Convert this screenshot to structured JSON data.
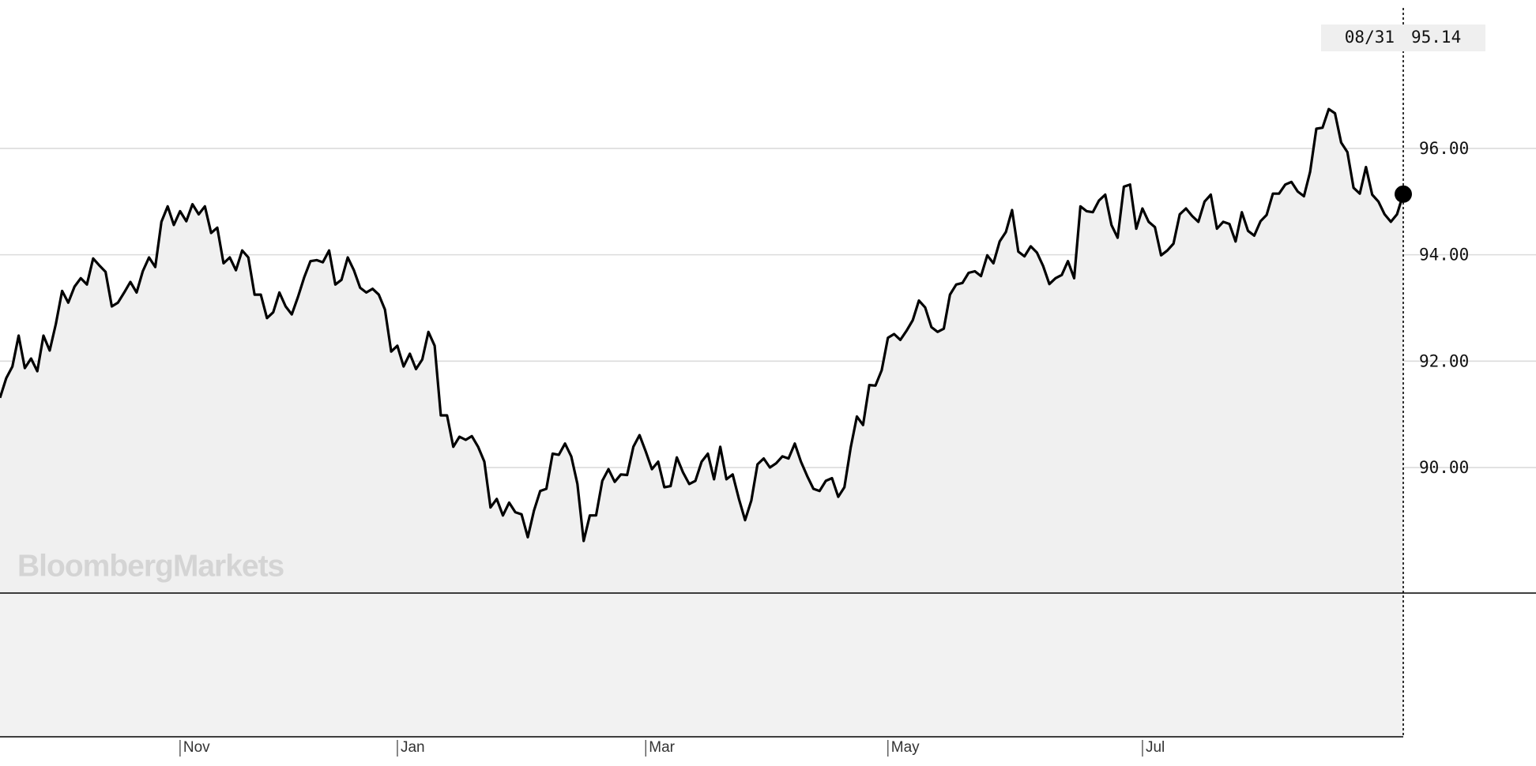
{
  "chart_data": {
    "type": "line",
    "watermark": "BloombergMarkets",
    "tooltip_date": "08/31",
    "values": [
      91.31,
      91.68,
      91.9,
      92.48,
      91.87,
      92.05,
      91.81,
      92.48,
      92.2,
      92.7,
      93.32,
      93.1,
      93.4,
      93.56,
      93.44,
      93.93,
      93.8,
      93.68,
      93.03,
      93.1,
      93.29,
      93.49,
      93.29,
      93.69,
      93.95,
      93.77,
      94.62,
      94.91,
      94.56,
      94.82,
      94.63,
      94.95,
      94.76,
      94.91,
      94.41,
      94.51,
      93.84,
      93.95,
      93.71,
      94.08,
      93.95,
      93.25,
      93.25,
      92.81,
      92.92,
      93.29,
      93.03,
      92.88,
      93.21,
      93.58,
      93.88,
      93.9,
      93.86,
      94.08,
      93.44,
      93.53,
      93.95,
      93.71,
      93.38,
      93.29,
      93.36,
      93.25,
      92.97,
      92.18,
      92.29,
      91.9,
      92.14,
      91.85,
      92.03,
      92.55,
      92.29,
      90.98,
      90.98,
      90.39,
      90.58,
      90.52,
      90.59,
      90.39,
      90.11,
      89.25,
      89.41,
      89.1,
      89.34,
      89.16,
      89.12,
      88.69,
      89.19,
      89.56,
      89.6,
      90.26,
      90.24,
      90.45,
      90.21,
      89.69,
      88.62,
      89.1,
      89.1,
      89.75,
      89.97,
      89.73,
      89.87,
      89.86,
      90.39,
      90.61,
      90.3,
      89.97,
      90.11,
      89.63,
      89.65,
      90.19,
      89.91,
      89.69,
      89.75,
      90.11,
      90.26,
      89.78,
      90.39,
      89.78,
      89.87,
      89.41,
      89.01,
      89.38,
      90.06,
      90.17,
      90.0,
      90.08,
      90.21,
      90.17,
      90.45,
      90.11,
      89.84,
      89.6,
      89.56,
      89.75,
      89.8,
      89.45,
      89.63,
      90.37,
      90.96,
      90.8,
      91.55,
      91.54,
      91.83,
      92.44,
      92.51,
      92.4,
      92.57,
      92.77,
      93.14,
      93.01,
      92.64,
      92.55,
      92.61,
      93.25,
      93.44,
      93.47,
      93.66,
      93.69,
      93.6,
      93.99,
      93.84,
      94.25,
      94.43,
      94.84,
      94.06,
      93.97,
      94.16,
      94.04,
      93.79,
      93.45,
      93.56,
      93.62,
      93.88,
      93.56,
      94.91,
      94.82,
      94.8,
      95.02,
      95.13,
      94.56,
      94.32,
      95.28,
      95.32,
      94.49,
      94.87,
      94.62,
      94.52,
      93.99,
      94.08,
      94.21,
      94.76,
      94.87,
      94.73,
      94.62,
      95.0,
      95.13,
      94.49,
      94.62,
      94.58,
      94.25,
      94.8,
      94.45,
      94.36,
      94.63,
      94.75,
      95.15,
      95.15,
      95.32,
      95.37,
      95.19,
      95.1,
      95.56,
      96.37,
      96.39,
      96.74,
      96.66,
      96.11,
      95.93,
      95.26,
      95.15,
      95.65,
      95.13,
      95.0,
      94.76,
      94.62,
      94.76,
      95.14
    ],
    "color": "#000000",
    "area_color": "#f0f0f0",
    "xlim": [
      0,
      226
    ],
    "xticks": [
      {
        "value": 29,
        "label": "Nov"
      },
      {
        "value": 64,
        "label": "Jan"
      },
      {
        "value": 104,
        "label": "Mar"
      },
      {
        "value": 143,
        "label": "May"
      },
      {
        "value": 184,
        "label": "Jul"
      }
    ],
    "ylim": [
      87.64,
      98.79
    ],
    "yticks": [
      {
        "value": 90,
        "label": "90.00"
      },
      {
        "value": 92,
        "label": "92.00"
      },
      {
        "value": 94,
        "label": "94.00"
      },
      {
        "value": 96,
        "label": "96.00"
      }
    ],
    "grid": true
  }
}
